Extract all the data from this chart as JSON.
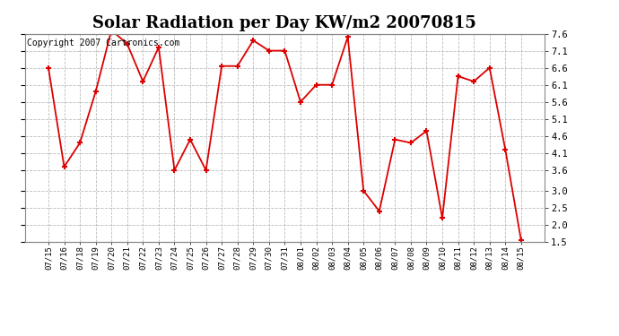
{
  "title": "Solar Radiation per Day KW/m2 20070815",
  "copyright_text": "Copyright 2007 Cartronics.com",
  "dates": [
    "07/15",
    "07/16",
    "07/18",
    "07/19",
    "07/20",
    "07/21",
    "07/22",
    "07/23",
    "07/24",
    "07/25",
    "07/26",
    "07/27",
    "07/28",
    "07/29",
    "07/30",
    "07/31",
    "08/01",
    "08/02",
    "08/03",
    "08/04",
    "08/05",
    "08/06",
    "08/07",
    "08/08",
    "08/09",
    "08/10",
    "08/11",
    "08/12",
    "08/13",
    "08/14",
    "08/15"
  ],
  "vals": [
    6.6,
    3.7,
    4.4,
    5.9,
    7.7,
    7.3,
    6.2,
    7.2,
    3.6,
    4.5,
    3.6,
    6.65,
    6.65,
    7.4,
    7.1,
    7.1,
    5.6,
    6.1,
    6.1,
    7.5,
    3.0,
    2.4,
    4.5,
    4.4,
    4.75,
    2.2,
    6.35,
    6.2,
    6.6,
    4.2,
    1.55
  ],
  "line_color": "#dd0000",
  "marker_color": "#dd0000",
  "background_color": "#ffffff",
  "grid_color": "#bbbbbb",
  "ylim_min": 1.5,
  "ylim_max": 7.6,
  "yticks": [
    1.5,
    2.0,
    2.5,
    3.0,
    3.6,
    4.1,
    4.6,
    5.1,
    5.6,
    6.1,
    6.6,
    7.1,
    7.6
  ],
  "title_fontsize": 13,
  "copyright_fontsize": 7
}
